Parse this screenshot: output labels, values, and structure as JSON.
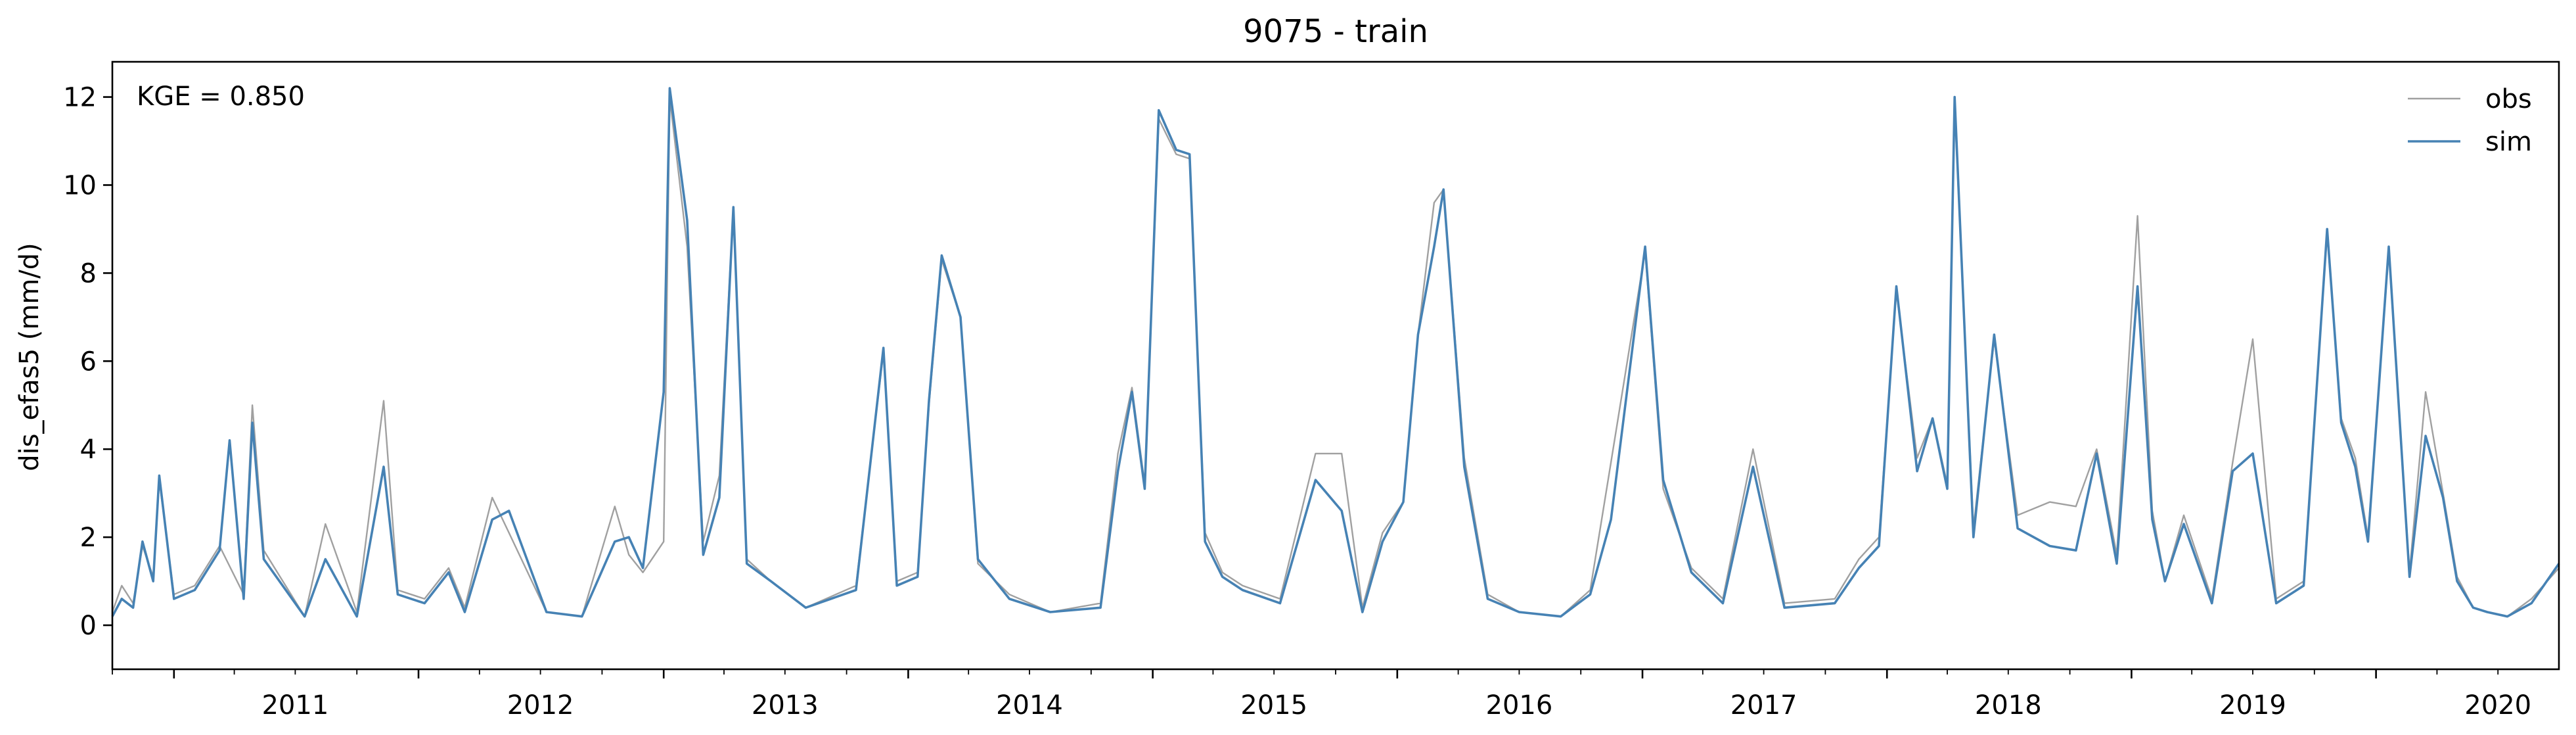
{
  "chart_data": {
    "type": "line",
    "title": "9075 - train",
    "xlabel": "",
    "ylabel": "dis_efas5 (mm/d)",
    "annotation": "KGE = 0.850",
    "xlim": [
      "2010-10-01",
      "2020-09-30"
    ],
    "ylim": [
      -1.0,
      12.8
    ],
    "yticks": [
      0,
      2,
      4,
      6,
      8,
      10,
      12
    ],
    "x_tick_labels": [
      "2011",
      "2012",
      "2013",
      "2014",
      "2015",
      "2016",
      "2017",
      "2018",
      "2019",
      "2020"
    ],
    "legend_position": "top-right",
    "grid": false,
    "series": [
      {
        "name": "obs",
        "color": "#a0a0a0",
        "x": [
          "2010-10-01",
          "2010-10-15",
          "2010-11-01",
          "2010-11-15",
          "2010-12-01",
          "2010-12-10",
          "2011-01-01",
          "2011-02-01",
          "2011-03-10",
          "2011-04-15",
          "2011-04-28",
          "2011-05-15",
          "2011-07-15",
          "2011-08-15",
          "2011-10-01",
          "2011-11-10",
          "2011-12-01",
          "2012-01-10",
          "2012-02-15",
          "2012-03-10",
          "2012-04-20",
          "2012-05-15",
          "2012-07-10",
          "2012-09-01",
          "2012-10-20",
          "2012-11-10",
          "2012-12-01",
          "2013-01-01",
          "2013-01-10",
          "2013-02-05",
          "2013-03-01",
          "2013-03-25",
          "2013-04-15",
          "2013-05-05",
          "2013-06-10",
          "2013-08-01",
          "2013-10-15",
          "2013-11-25",
          "2013-12-15",
          "2014-01-15",
          "2014-02-01",
          "2014-02-20",
          "2014-03-20",
          "2014-04-15",
          "2014-06-01",
          "2014-08-01",
          "2014-10-15",
          "2014-11-10",
          "2014-12-01",
          "2014-12-20",
          "2015-01-10",
          "2015-02-05",
          "2015-02-25",
          "2015-03-20",
          "2015-04-15",
          "2015-05-15",
          "2015-07-10",
          "2015-09-01",
          "2015-10-10",
          "2015-11-10",
          "2015-12-10",
          "2016-01-10",
          "2016-02-01",
          "2016-02-25",
          "2016-03-10",
          "2016-04-10",
          "2016-05-15",
          "2016-07-01",
          "2016-09-01",
          "2016-10-15",
          "2016-11-15",
          "2017-01-05",
          "2017-02-01",
          "2017-03-15",
          "2017-05-01",
          "2017-06-15",
          "2017-08-01",
          "2017-10-15",
          "2017-11-20",
          "2017-12-20",
          "2018-01-15",
          "2018-02-15",
          "2018-03-10",
          "2018-04-01",
          "2018-04-12",
          "2018-05-10",
          "2018-06-10",
          "2018-07-15",
          "2018-09-01",
          "2018-10-10",
          "2018-11-10",
          "2018-12-10",
          "2019-01-10",
          "2019-02-01",
          "2019-02-20",
          "2019-03-20",
          "2019-05-01",
          "2019-06-01",
          "2019-07-01",
          "2019-08-05",
          "2019-09-15",
          "2019-10-20",
          "2019-11-10",
          "2019-12-01",
          "2019-12-20",
          "2020-01-20",
          "2020-02-20",
          "2020-03-15",
          "2020-04-10",
          "2020-05-01",
          "2020-05-25",
          "2020-06-15",
          "2020-07-15",
          "2020-08-20",
          "2020-09-30"
        ],
        "y": [
          0.3,
          0.9,
          0.5,
          1.8,
          1.1,
          3.3,
          0.7,
          0.9,
          1.8,
          0.7,
          5.0,
          1.7,
          0.2,
          2.3,
          0.3,
          5.1,
          0.8,
          0.6,
          1.3,
          0.4,
          2.9,
          2.1,
          0.3,
          0.2,
          2.7,
          1.6,
          1.2,
          1.9,
          12.0,
          8.6,
          1.9,
          3.4,
          9.5,
          1.5,
          1.0,
          0.4,
          0.9,
          6.2,
          1.0,
          1.2,
          5.0,
          8.3,
          7.0,
          1.4,
          0.7,
          0.3,
          0.5,
          3.9,
          5.4,
          3.2,
          11.5,
          10.7,
          10.6,
          2.1,
          1.2,
          0.9,
          0.6,
          3.9,
          3.9,
          0.4,
          2.1,
          2.8,
          6.6,
          9.6,
          9.9,
          3.8,
          0.7,
          0.3,
          0.2,
          0.8,
          3.7,
          8.5,
          3.1,
          1.3,
          0.6,
          4.0,
          0.5,
          0.6,
          1.5,
          2.0,
          7.6,
          3.8,
          4.7,
          3.2,
          11.8,
          2.2,
          6.5,
          2.5,
          2.8,
          2.7,
          4.0,
          1.6,
          9.3,
          2.6,
          1.0,
          2.5,
          0.6,
          3.7,
          6.5,
          0.6,
          1.0,
          8.9,
          4.7,
          3.8,
          2.0,
          8.5,
          1.2,
          5.3,
          3.0,
          1.1,
          0.4,
          0.3,
          0.2,
          0.6,
          1.3
        ]
      },
      {
        "name": "sim",
        "color": "#4682b4",
        "x": [
          "2010-10-01",
          "2010-10-15",
          "2010-11-01",
          "2010-11-15",
          "2010-12-01",
          "2010-12-10",
          "2011-01-01",
          "2011-02-01",
          "2011-03-10",
          "2011-03-25",
          "2011-04-15",
          "2011-04-28",
          "2011-05-15",
          "2011-07-15",
          "2011-08-15",
          "2011-10-01",
          "2011-11-10",
          "2011-12-01",
          "2012-01-10",
          "2012-02-15",
          "2012-03-10",
          "2012-04-20",
          "2012-05-15",
          "2012-07-10",
          "2012-09-01",
          "2012-10-20",
          "2012-11-10",
          "2012-12-01",
          "2013-01-01",
          "2013-01-10",
          "2013-02-05",
          "2013-03-01",
          "2013-03-25",
          "2013-04-15",
          "2013-05-05",
          "2013-06-10",
          "2013-08-01",
          "2013-10-15",
          "2013-11-25",
          "2013-12-15",
          "2014-01-15",
          "2014-02-01",
          "2014-02-20",
          "2014-03-20",
          "2014-04-15",
          "2014-06-01",
          "2014-08-01",
          "2014-10-15",
          "2014-11-10",
          "2014-12-01",
          "2014-12-20",
          "2015-01-10",
          "2015-02-05",
          "2015-02-25",
          "2015-03-20",
          "2015-04-15",
          "2015-05-15",
          "2015-07-10",
          "2015-09-01",
          "2015-10-10",
          "2015-11-10",
          "2015-12-10",
          "2016-01-10",
          "2016-02-01",
          "2016-02-25",
          "2016-03-10",
          "2016-04-10",
          "2016-05-15",
          "2016-07-01",
          "2016-09-01",
          "2016-10-15",
          "2016-11-15",
          "2017-01-05",
          "2017-02-01",
          "2017-03-15",
          "2017-05-01",
          "2017-06-15",
          "2017-08-01",
          "2017-10-15",
          "2017-11-20",
          "2017-12-20",
          "2018-01-15",
          "2018-02-15",
          "2018-03-10",
          "2018-04-01",
          "2018-04-12",
          "2018-05-10",
          "2018-06-10",
          "2018-07-15",
          "2018-09-01",
          "2018-10-10",
          "2018-11-10",
          "2018-12-10",
          "2019-01-10",
          "2019-02-01",
          "2019-02-20",
          "2019-03-20",
          "2019-05-01",
          "2019-06-01",
          "2019-07-01",
          "2019-08-05",
          "2019-09-15",
          "2019-10-20",
          "2019-11-10",
          "2019-12-01",
          "2019-12-20",
          "2020-01-20",
          "2020-02-20",
          "2020-03-15",
          "2020-04-10",
          "2020-05-01",
          "2020-05-25",
          "2020-06-15",
          "2020-07-15",
          "2020-08-20",
          "2020-09-30"
        ],
        "y": [
          0.2,
          0.6,
          0.4,
          1.9,
          1.0,
          3.4,
          0.6,
          0.8,
          1.7,
          4.2,
          0.6,
          4.6,
          1.5,
          0.2,
          1.5,
          0.2,
          3.6,
          0.7,
          0.5,
          1.2,
          0.3,
          2.4,
          2.6,
          0.3,
          0.2,
          1.9,
          2.0,
          1.3,
          5.3,
          12.2,
          9.2,
          1.6,
          2.9,
          9.5,
          1.4,
          1.0,
          0.4,
          0.8,
          6.3,
          0.9,
          1.1,
          5.1,
          8.4,
          7.0,
          1.5,
          0.6,
          0.3,
          0.4,
          3.5,
          5.3,
          3.1,
          11.7,
          10.8,
          10.7,
          1.9,
          1.1,
          0.8,
          0.5,
          3.3,
          2.6,
          0.3,
          1.9,
          2.8,
          6.6,
          8.6,
          9.9,
          3.6,
          0.6,
          0.3,
          0.2,
          0.7,
          2.4,
          8.6,
          3.3,
          1.2,
          0.5,
          3.6,
          0.4,
          0.5,
          1.3,
          1.8,
          7.7,
          3.5,
          4.7,
          3.1,
          12.0,
          2.0,
          6.6,
          2.2,
          1.8,
          1.7,
          3.9,
          1.4,
          7.7,
          2.4,
          1.0,
          2.3,
          0.5,
          3.5,
          3.9,
          0.5,
          0.9,
          9.0,
          4.6,
          3.6,
          1.9,
          8.6,
          1.1,
          4.3,
          2.9,
          1.0,
          0.4,
          0.3,
          0.2,
          0.5,
          1.4
        ]
      }
    ]
  }
}
